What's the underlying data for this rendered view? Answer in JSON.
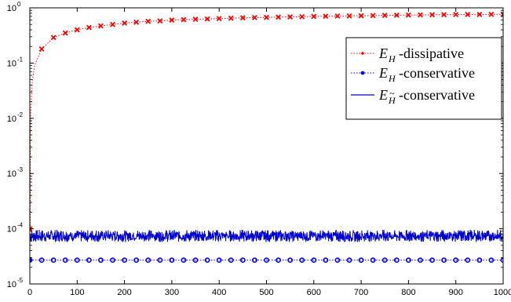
{
  "chart_data": {
    "type": "line",
    "title": "",
    "xlabel": "",
    "ylabel": "",
    "xlim": [
      0,
      1000
    ],
    "ylim": [
      1e-05,
      1
    ],
    "yscale": "log",
    "grid": false,
    "legend_position": "top-right",
    "x_ticks": [
      "0",
      "100",
      "200",
      "300",
      "400",
      "500",
      "600",
      "700",
      "800",
      "900",
      "1000"
    ],
    "y_ticks": [
      {
        "base": "10",
        "exp": "-5",
        "value": 1e-05
      },
      {
        "base": "10",
        "exp": "-4",
        "value": 0.0001
      },
      {
        "base": "10",
        "exp": "-3",
        "value": 0.001
      },
      {
        "base": "10",
        "exp": "-2",
        "value": 0.01
      },
      {
        "base": "10",
        "exp": "-1",
        "value": 0.1
      },
      {
        "base": "10",
        "exp": "0",
        "value": 1
      }
    ],
    "series": [
      {
        "name": "E_H-dissipative",
        "legend_main": "E",
        "legend_sub": "H",
        "legend_suffix": "-dissipative",
        "color": "#ff0000",
        "style": "dotted line with x markers",
        "x": [
          0,
          1,
          2,
          5,
          10,
          25,
          50,
          75,
          100,
          125,
          150,
          175,
          200,
          225,
          250,
          275,
          300,
          325,
          350,
          375,
          400,
          425,
          450,
          475,
          500,
          525,
          550,
          575,
          600,
          625,
          650,
          675,
          700,
          725,
          750,
          775,
          800,
          825,
          850,
          875,
          900,
          925,
          950,
          975,
          1000
        ],
        "y": [
          0.0001,
          0.004,
          0.013,
          0.045,
          0.09,
          0.18,
          0.29,
          0.35,
          0.4,
          0.44,
          0.47,
          0.5,
          0.53,
          0.55,
          0.57,
          0.58,
          0.6,
          0.61,
          0.62,
          0.63,
          0.64,
          0.65,
          0.66,
          0.665,
          0.67,
          0.68,
          0.685,
          0.69,
          0.7,
          0.705,
          0.71,
          0.715,
          0.72,
          0.725,
          0.73,
          0.735,
          0.74,
          0.745,
          0.75,
          0.752,
          0.755,
          0.758,
          0.76,
          0.762,
          0.765
        ],
        "marker_x": [
          0,
          25,
          50,
          75,
          100,
          125,
          150,
          175,
          200,
          225,
          250,
          275,
          300,
          325,
          350,
          375,
          400,
          425,
          450,
          475,
          500,
          525,
          550,
          575,
          600,
          625,
          650,
          675,
          700,
          725,
          750,
          775,
          800,
          825,
          850,
          875,
          900,
          925,
          950,
          975,
          1000
        ]
      },
      {
        "name": "E_H-conservative",
        "legend_main": "E",
        "legend_sub": "H",
        "legend_suffix": "-conservative",
        "color": "#0000ff",
        "style": "dotted line with circle markers",
        "x": [
          0,
          1000
        ],
        "y": [
          2.7e-05,
          2.7e-05
        ],
        "marker_x": [
          0,
          25,
          50,
          75,
          100,
          125,
          150,
          175,
          200,
          225,
          250,
          275,
          300,
          325,
          350,
          375,
          400,
          425,
          450,
          475,
          500,
          525,
          550,
          575,
          600,
          625,
          650,
          675,
          700,
          725,
          750,
          775,
          800,
          825,
          850,
          875,
          900,
          925,
          950,
          975,
          1000
        ]
      },
      {
        "name": "E_H~-conservative",
        "legend_main": "E",
        "legend_sub": "H",
        "legend_tilde": "~",
        "legend_suffix": "-conservative",
        "color": "#0000cc",
        "style": "solid oscillating line",
        "x": [
          0,
          1000
        ],
        "y_band": [
          5.5e-05,
          0.0001
        ],
        "y_mean": 7.5e-05
      }
    ]
  }
}
